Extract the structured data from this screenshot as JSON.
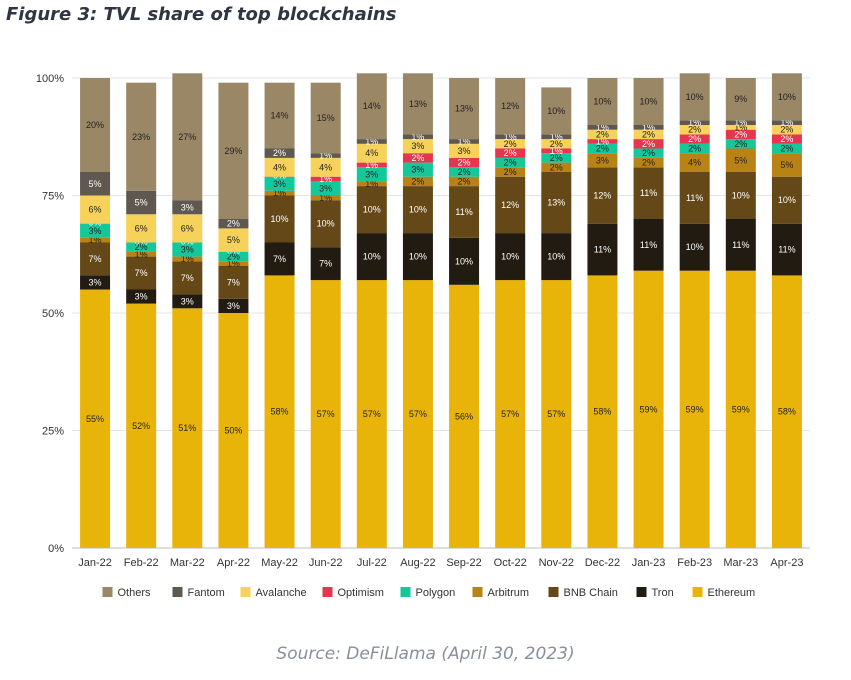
{
  "page": {
    "title": "Figure 3: TVL share of top blockchains",
    "source": "Source: DeFiLlama (April 30, 2023)"
  },
  "chart_data": {
    "type": "bar",
    "stacked": true,
    "title": "Figure 3: TVL share of top blockchains",
    "xlabel": "",
    "ylabel": "",
    "ylim": [
      0,
      100
    ],
    "y_ticks": [
      "0%",
      "25%",
      "50%",
      "75%",
      "100%"
    ],
    "grid": true,
    "legend_position": "bottom",
    "categories": [
      "Jan-22",
      "Feb-22",
      "Mar-22",
      "Apr-22",
      "May-22",
      "Jun-22",
      "Jul-22",
      "Aug-22",
      "Sep-22",
      "Oct-22",
      "Nov-22",
      "Dec-22",
      "Jan-23",
      "Feb-23",
      "Mar-23",
      "Apr-23"
    ],
    "series": [
      {
        "name": "Ethereum",
        "color": "#e9b40a",
        "values": [
          55,
          52,
          51,
          50,
          58,
          57,
          57,
          57,
          56,
          57,
          57,
          58,
          59,
          59,
          59,
          58
        ]
      },
      {
        "name": "Tron",
        "color": "#211b12",
        "values": [
          3,
          3,
          3,
          3,
          7,
          7,
          10,
          10,
          10,
          10,
          10,
          11,
          11,
          10,
          11,
          11
        ]
      },
      {
        "name": "BNB Chain",
        "color": "#654818",
        "values": [
          7,
          7,
          7,
          7,
          10,
          10,
          10,
          10,
          11,
          12,
          13,
          12,
          11,
          11,
          10,
          10
        ]
      },
      {
        "name": "Arbitrum",
        "color": "#b98215",
        "values": [
          1,
          1,
          1,
          1,
          1,
          1,
          1,
          2,
          2,
          2,
          2,
          3,
          2,
          4,
          5,
          5
        ]
      },
      {
        "name": "Polygon",
        "color": "#16c79a",
        "values": [
          3,
          2,
          3,
          2,
          3,
          3,
          3,
          3,
          2,
          2,
          2,
          2,
          2,
          2,
          2,
          2
        ]
      },
      {
        "name": "Optimism",
        "color": "#e6354e",
        "values": [
          0,
          0,
          0,
          0,
          0,
          1,
          1,
          2,
          2,
          2,
          1,
          1,
          2,
          2,
          2,
          2
        ]
      },
      {
        "name": "Avalanche",
        "color": "#f7d25a",
        "values": [
          6,
          6,
          6,
          5,
          4,
          4,
          4,
          3,
          3,
          2,
          2,
          2,
          2,
          2,
          1,
          2
        ]
      },
      {
        "name": "Fantom",
        "color": "#5e5850",
        "values": [
          5,
          5,
          3,
          2,
          2,
          1,
          1,
          1,
          1,
          1,
          1,
          1,
          1,
          1,
          1,
          1
        ]
      },
      {
        "name": "Others",
        "color": "#998766",
        "values": [
          20,
          23,
          27,
          29,
          14,
          15,
          14,
          13,
          13,
          12,
          10,
          10,
          10,
          10,
          9,
          10
        ]
      }
    ],
    "legend_order": [
      "Others",
      "Fantom",
      "Avalanche",
      "Optimism",
      "Polygon",
      "Arbitrum",
      "BNB Chain",
      "Tron",
      "Ethereum"
    ]
  }
}
